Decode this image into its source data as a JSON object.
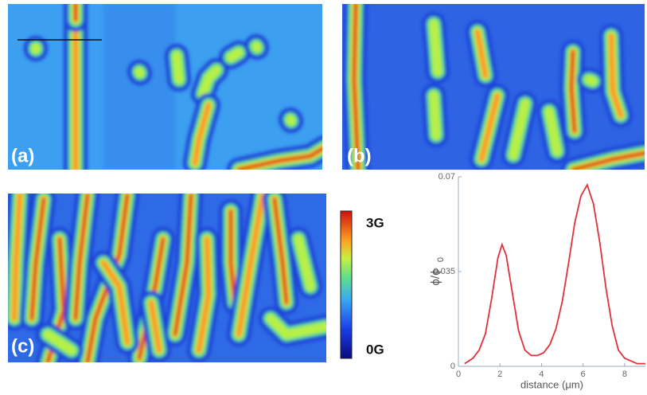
{
  "panels": [
    {
      "label": "(a)"
    },
    {
      "label": "(b)"
    },
    {
      "label": "(c)"
    }
  ],
  "colorbar": {
    "max_label": "3G",
    "min_label": "0G"
  },
  "chart_data": {
    "type": "line",
    "x": [
      0.3,
      0.7,
      1,
      1.3,
      1.6,
      1.9,
      2.1,
      2.3,
      2.6,
      2.9,
      3.2,
      3.5,
      3.8,
      4.1,
      4.4,
      4.7,
      5,
      5.3,
      5.6,
      5.9,
      6.2,
      6.5,
      6.8,
      7.1,
      7.4,
      7.7,
      8,
      8.3,
      8.6,
      9
    ],
    "series": [
      {
        "color": "#e0303c",
        "values": [
          0.001,
          0.003,
          0.006,
          0.012,
          0.025,
          0.04,
          0.045,
          0.041,
          0.027,
          0.013,
          0.006,
          0.004,
          0.004,
          0.005,
          0.008,
          0.014,
          0.024,
          0.038,
          0.053,
          0.063,
          0.067,
          0.06,
          0.046,
          0.029,
          0.015,
          0.006,
          0.003,
          0.002,
          0.001,
          0.001
        ]
      }
    ],
    "xlim": [
      0,
      9
    ],
    "xticks": [
      0,
      2,
      4,
      6,
      8
    ],
    "ylim": [
      0,
      0.07
    ],
    "yticks": [
      0,
      0.035,
      0.07
    ],
    "x_label": "distance (μm)",
    "y_label": "ϕ/ϕ",
    "y_label_subscript": "0"
  }
}
